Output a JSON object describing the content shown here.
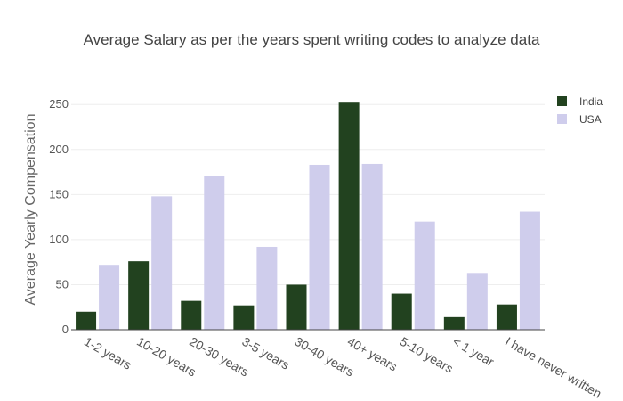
{
  "chart_data": {
    "type": "bar",
    "title": "Average Salary as per the years spent writing codes to analyze data",
    "xlabel": "",
    "ylabel": "Average Yearly Compensation",
    "categories": [
      "1-2 years",
      "10-20 years",
      "20-30 years",
      "3-5 years",
      "30-40 years",
      "40+ years",
      "5-10 years",
      "< 1 year",
      "I have never written"
    ],
    "series": [
      {
        "name": "India",
        "color": "#22421f",
        "values": [
          20,
          76,
          32,
          27,
          50,
          252,
          40,
          14,
          28
        ]
      },
      {
        "name": "USA",
        "color": "#cfcdec",
        "values": [
          72,
          148,
          171,
          92,
          183,
          184,
          120,
          63,
          131
        ]
      }
    ],
    "ylim": [
      0,
      270
    ],
    "yticks": [
      0,
      50,
      100,
      150,
      200,
      250
    ],
    "grid": true,
    "legend_position": "top-right"
  }
}
